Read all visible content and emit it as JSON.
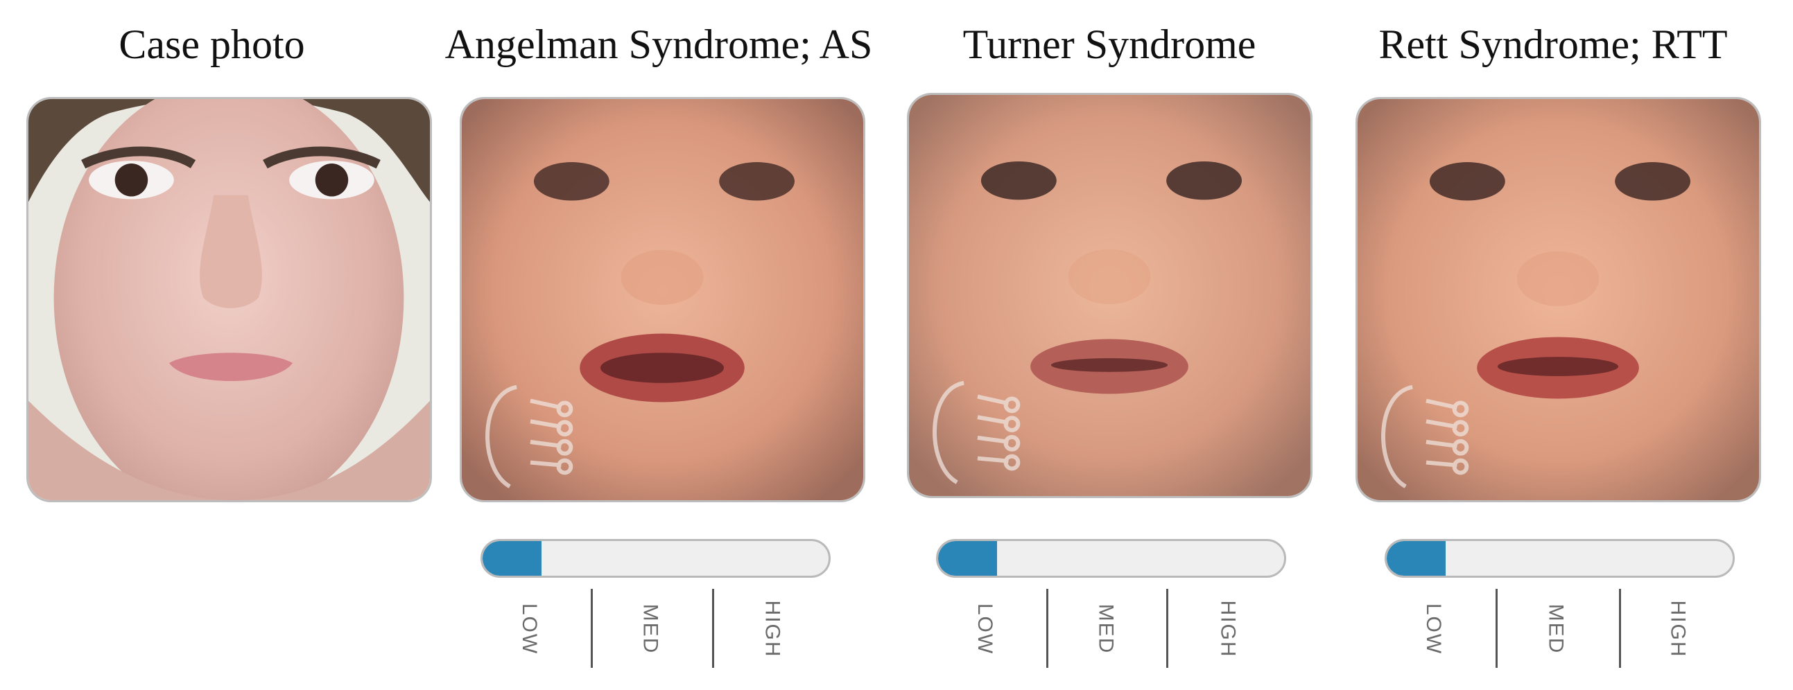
{
  "panels": [
    {
      "title": "Case photo",
      "kind": "case-photo"
    },
    {
      "title": "Angelman Syndrome; AS",
      "kind": "composite",
      "level_fraction": 0.17
    },
    {
      "title": "Turner Syndrome",
      "kind": "composite",
      "level_fraction": 0.17
    },
    {
      "title": "Rett Syndrome; RTT",
      "kind": "composite",
      "level_fraction": 0.17
    }
  ],
  "scale_labels": {
    "low": "LOW",
    "med": "MED",
    "high": "HIGH"
  },
  "colors": {
    "meter_fill": "#2a86b7",
    "meter_track": "#efefef",
    "meter_border": "#b9b9b9"
  }
}
